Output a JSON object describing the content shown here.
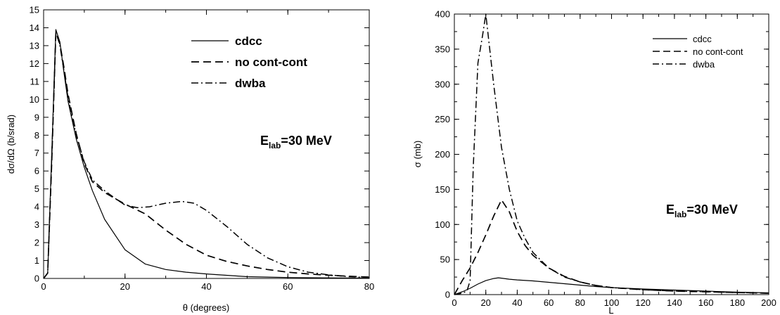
{
  "chart_data": [
    {
      "type": "line",
      "xlabel": "θ (degrees)",
      "ylabel": "dσ/dΩ (b/srad)",
      "xlim": [
        0,
        80
      ],
      "ylim": [
        0,
        15
      ],
      "xticks": [
        "0",
        "20",
        "40",
        "60",
        "80"
      ],
      "yticks": [
        "0",
        "1",
        "2",
        "3",
        "4",
        "5",
        "6",
        "7",
        "8",
        "9",
        "10",
        "11",
        "12",
        "13",
        "14",
        "15"
      ],
      "grid": false,
      "legend_position": "top-right",
      "annotation": {
        "main": "E",
        "sub": "lab",
        "rest": "=30 MeV"
      },
      "series": [
        {
          "name": "cdcc",
          "style": "solid",
          "x": [
            0,
            1,
            2,
            3,
            4,
            5,
            6,
            8,
            10,
            12,
            15,
            20,
            25,
            30,
            35,
            40,
            50,
            60,
            70,
            80
          ],
          "y": [
            0,
            0.3,
            7.0,
            13.9,
            13.2,
            11.5,
            9.9,
            7.8,
            6.2,
            4.9,
            3.3,
            1.6,
            0.8,
            0.5,
            0.35,
            0.25,
            0.1,
            0.05,
            0.03,
            0.02
          ]
        },
        {
          "name": "no cont-cont",
          "style": "dashed",
          "x": [
            0,
            1,
            2,
            3,
            4,
            5,
            6,
            8,
            10,
            12,
            15,
            18,
            20,
            25,
            30,
            35,
            40,
            45,
            50,
            55,
            60,
            65,
            70,
            75,
            80
          ],
          "y": [
            0,
            0.3,
            6.5,
            13.7,
            13.1,
            11.8,
            10.3,
            8.1,
            6.4,
            5.4,
            4.8,
            4.4,
            4.15,
            3.6,
            2.7,
            1.9,
            1.3,
            0.95,
            0.7,
            0.5,
            0.35,
            0.25,
            0.18,
            0.12,
            0.08
          ]
        },
        {
          "name": "dwba",
          "style": "dashdot",
          "x": [
            0,
            1,
            2,
            3,
            4,
            5,
            6,
            8,
            10,
            12,
            15,
            18,
            20,
            23,
            26,
            30,
            34,
            37,
            40,
            45,
            50,
            55,
            60,
            65,
            70,
            75,
            80
          ],
          "y": [
            0,
            0.3,
            6.8,
            13.8,
            13.0,
            11.6,
            10.1,
            8.0,
            6.5,
            5.5,
            4.9,
            4.4,
            4.1,
            3.95,
            4.0,
            4.2,
            4.3,
            4.2,
            3.8,
            2.9,
            1.9,
            1.15,
            0.65,
            0.35,
            0.2,
            0.1,
            0.05
          ]
        }
      ]
    },
    {
      "type": "line",
      "xlabel": "L",
      "ylabel": "σ (mb)",
      "xlim": [
        0,
        200
      ],
      "ylim": [
        0,
        400
      ],
      "xticks": [
        "0",
        "20",
        "40",
        "60",
        "80",
        "100",
        "120",
        "140",
        "160",
        "180",
        "200"
      ],
      "yticks": [
        "0",
        "50",
        "100",
        "150",
        "200",
        "250",
        "300",
        "350",
        "400"
      ],
      "grid": false,
      "legend_position": "top-right",
      "annotation": {
        "main": "E",
        "sub": "lab",
        "rest": "=30 MeV"
      },
      "series": [
        {
          "name": "cdcc",
          "style": "solid",
          "x": [
            0,
            5,
            10,
            15,
            20,
            25,
            28,
            30,
            35,
            40,
            50,
            60,
            70,
            80,
            90,
            100,
            120,
            140,
            160,
            180,
            200
          ],
          "y": [
            0,
            4,
            9,
            15,
            20,
            23,
            24,
            23.5,
            22,
            21,
            19.5,
            17.5,
            15.5,
            13.5,
            11.5,
            10,
            8,
            6.5,
            5,
            3.5,
            2.5
          ]
        },
        {
          "name": "no cont-cont",
          "style": "dashed",
          "x": [
            0,
            5,
            10,
            15,
            20,
            25,
            30,
            35,
            40,
            45,
            50,
            60,
            70,
            80,
            90,
            100,
            120,
            140,
            160,
            180,
            200
          ],
          "y": [
            0,
            20,
            38,
            60,
            85,
            112,
            135,
            118,
            90,
            70,
            56,
            38,
            26,
            18,
            13,
            10,
            7,
            5,
            4,
            3,
            2
          ]
        },
        {
          "name": "dwba",
          "style": "dashdot",
          "x": [
            0,
            5,
            8,
            10,
            12,
            15,
            18,
            20,
            25,
            30,
            35,
            40,
            45,
            50,
            60,
            70,
            80,
            90,
            100,
            120,
            140,
            160,
            180,
            200
          ],
          "y": [
            0,
            2,
            5,
            20,
            180,
            330,
            370,
            400,
            300,
            210,
            150,
            105,
            80,
            60,
            38,
            25,
            18,
            13,
            10,
            7,
            5,
            4,
            3,
            2
          ]
        }
      ]
    }
  ]
}
